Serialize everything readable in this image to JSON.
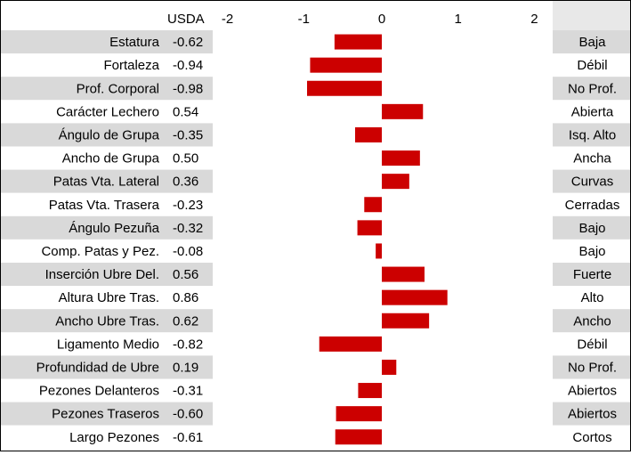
{
  "chart_data": {
    "type": "bar",
    "orientation": "horizontal",
    "value_header": "USDA",
    "xlim": [
      -2,
      2
    ],
    "x_ticks": [
      "-2",
      "-1",
      "0",
      "1",
      "2"
    ],
    "bar_color": "#cc0000",
    "row_colors": [
      "#d9d9d9",
      "#ffffff"
    ],
    "rows": [
      {
        "trait": "Estatura",
        "value_label": "-0.62",
        "value": -0.62,
        "descriptor": "Baja"
      },
      {
        "trait": "Fortaleza",
        "value_label": "-0.94",
        "value": -0.94,
        "descriptor": "Débil"
      },
      {
        "trait": "Prof. Corporal",
        "value_label": "-0.98",
        "value": -0.98,
        "descriptor": "No Prof."
      },
      {
        "trait": "Carácter Lechero",
        "value_label": "0.54",
        "value": 0.54,
        "descriptor": "Abierta"
      },
      {
        "trait": "Ángulo de Grupa",
        "value_label": "-0.35",
        "value": -0.35,
        "descriptor": "Isq. Alto"
      },
      {
        "trait": "Ancho de Grupa",
        "value_label": "0.50",
        "value": 0.5,
        "descriptor": "Ancha"
      },
      {
        "trait": "Patas Vta. Lateral",
        "value_label": "0.36",
        "value": 0.36,
        "descriptor": "Curvas"
      },
      {
        "trait": "Patas Vta. Trasera",
        "value_label": "-0.23",
        "value": -0.23,
        "descriptor": "Cerradas"
      },
      {
        "trait": "Ángulo Pezuña",
        "value_label": "-0.32",
        "value": -0.32,
        "descriptor": "Bajo"
      },
      {
        "trait": "Comp. Patas y Pez.",
        "value_label": "-0.08",
        "value": -0.08,
        "descriptor": "Bajo"
      },
      {
        "trait": "Inserción Ubre Del.",
        "value_label": "0.56",
        "value": 0.56,
        "descriptor": "Fuerte"
      },
      {
        "trait": "Altura Ubre Tras.",
        "value_label": "0.86",
        "value": 0.86,
        "descriptor": "Alto"
      },
      {
        "trait": "Ancho Ubre Tras.",
        "value_label": "0.62",
        "value": 0.62,
        "descriptor": "Ancho"
      },
      {
        "trait": "Ligamento Medio",
        "value_label": "-0.82",
        "value": -0.82,
        "descriptor": "Débil"
      },
      {
        "trait": "Profundidad de Ubre",
        "value_label": "0.19",
        "value": 0.19,
        "descriptor": "No Prof."
      },
      {
        "trait": "Pezones Delanteros",
        "value_label": "-0.31",
        "value": -0.31,
        "descriptor": "Abiertos"
      },
      {
        "trait": "Pezones Traseros",
        "value_label": "-0.60",
        "value": -0.6,
        "descriptor": "Abiertos"
      },
      {
        "trait": "Largo Pezones",
        "value_label": "-0.61",
        "value": -0.61,
        "descriptor": "Cortos"
      }
    ]
  }
}
